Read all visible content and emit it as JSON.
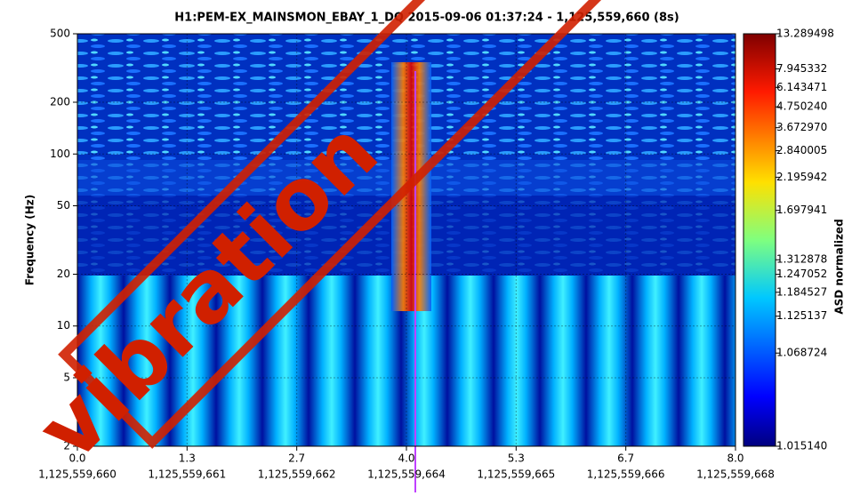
{
  "chart_data": {
    "type": "spectrogram",
    "title": "H1:PEM-EX_MAINSMON_EBAY_1_DQ 2015-09-06 01:37:24 - 1,125,559,660 (8s)",
    "ylabel": "Frequency (Hz)",
    "colorbar_label": "ASD normalized",
    "annotation": "vibration",
    "xlim": [
      0,
      8
    ],
    "xticks": [
      {
        "value": 0,
        "label": "0.0"
      },
      {
        "value": 1.3333,
        "label": "1.3"
      },
      {
        "value": 2.6667,
        "label": "2.7"
      },
      {
        "value": 4,
        "label": "4.0"
      },
      {
        "value": 5.3333,
        "label": "5.3"
      },
      {
        "value": 6.6667,
        "label": "6.7"
      },
      {
        "value": 8,
        "label": "8.0"
      }
    ],
    "xtick_sublabels": [
      "1,125,559,660",
      "1,125,559,661",
      "1,125,559,662",
      "1,125,559,664",
      "1,125,559,665",
      "1,125,559,666",
      "1,125,559,668"
    ],
    "ylim": [
      2,
      500
    ],
    "yscale": "log",
    "yticks": [
      2,
      5,
      10,
      20,
      50,
      100,
      200,
      500
    ],
    "grid": true,
    "colorbar_lim": [
      1.01514,
      13.289498
    ],
    "colorbar_scale": "log-excess",
    "colorbar_ticks": [
      {
        "value": 13.289498,
        "label": "13.289498"
      },
      {
        "value": 7.945332,
        "label": "7.945332"
      },
      {
        "value": 6.143471,
        "label": "6.143471"
      },
      {
        "value": 4.75024,
        "label": "4.750240"
      },
      {
        "value": 3.67297,
        "label": "3.672970"
      },
      {
        "value": 2.840005,
        "label": "2.840005"
      },
      {
        "value": 2.195942,
        "label": "2.195942"
      },
      {
        "value": 1.697941,
        "label": "1.697941"
      },
      {
        "value": 1.312878,
        "label": "1.312878"
      },
      {
        "value": 1.247052,
        "label": "1.247052"
      },
      {
        "value": 1.184527,
        "label": "1.184527"
      },
      {
        "value": 1.125137,
        "label": "1.125137"
      },
      {
        "value": 1.068724,
        "label": "1.068724"
      },
      {
        "value": 1.01514,
        "label": "1.015140"
      }
    ]
  }
}
